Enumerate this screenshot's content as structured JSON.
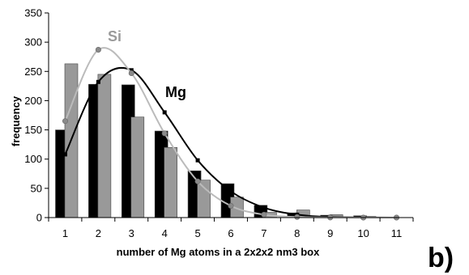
{
  "chart_data": {
    "type": "bar",
    "categories": [
      "1",
      "2",
      "3",
      "4",
      "5",
      "6",
      "7",
      "8",
      "9",
      "10",
      "11"
    ],
    "xlabel": "number of Mg atoms in a 2x2x2 nm3 box",
    "ylabel": "frequency",
    "ylim": [
      0,
      350
    ],
    "yticks": [
      "0",
      "50",
      "100",
      "150",
      "200",
      "250",
      "300",
      "350"
    ],
    "grid": false,
    "series": [
      {
        "name": "Mg",
        "kind": "bar",
        "color": "#000000",
        "values": [
          150,
          228,
          227,
          148,
          80,
          58,
          21,
          8,
          4,
          3,
          0
        ]
      },
      {
        "name": "Si",
        "kind": "bar",
        "color": "#999999",
        "values": [
          263,
          245,
          172,
          120,
          64,
          35,
          9,
          13,
          5,
          2,
          0
        ]
      },
      {
        "name": "Mg",
        "kind": "fit-line",
        "color": "#000000",
        "marker": "square",
        "values": [
          108,
          232,
          252,
          180,
          98,
          45,
          17,
          5,
          1,
          0.3,
          0
        ]
      },
      {
        "name": "Si",
        "kind": "fit-line",
        "color": "#bbbbbb",
        "marker": "circle",
        "values": [
          165,
          287,
          247,
          144,
          62,
          20,
          5,
          1,
          0.2,
          0,
          0
        ]
      }
    ],
    "annotations": [
      {
        "text": "Si",
        "color": "#9a9a9a"
      },
      {
        "text": "Mg",
        "color": "#000000"
      }
    ]
  },
  "panel_label": "b)"
}
